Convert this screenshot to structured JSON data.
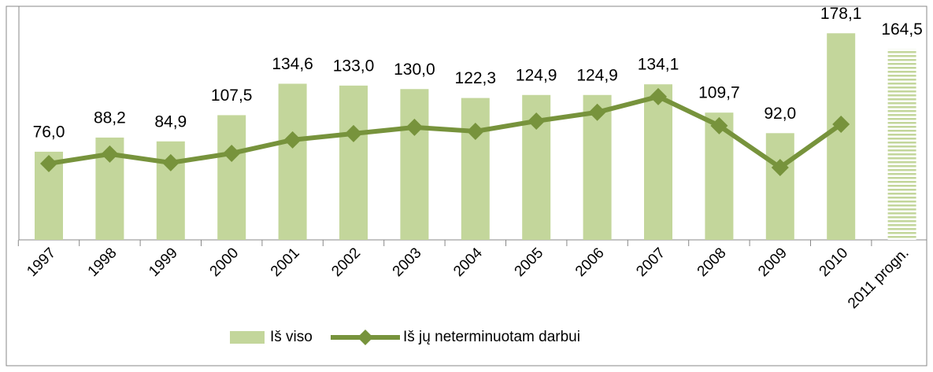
{
  "chart_data": {
    "type": "bar",
    "categories": [
      "1997",
      "1998",
      "1999",
      "2000",
      "2001",
      "2002",
      "2003",
      "2004",
      "2005",
      "2006",
      "2007",
      "2008",
      "2009",
      "2010",
      "2011 progn."
    ],
    "series": [
      {
        "name": "Iš viso",
        "type": "bar",
        "color": "#c3d69b",
        "values": [
          76.0,
          88.2,
          84.9,
          107.5,
          134.6,
          133.0,
          130.0,
          122.3,
          124.9,
          124.9,
          134.1,
          109.7,
          92.0,
          178.1,
          164.5
        ],
        "value_labels": [
          "76,0",
          "88,2",
          "84,9",
          "107,5",
          "134,6",
          "133,0",
          "130,0",
          "122,3",
          "124,9",
          "124,9",
          "134,1",
          "109,7",
          "92,0",
          "178,1",
          "164,5"
        ],
        "fills": [
          "solid",
          "solid",
          "solid",
          "solid",
          "solid",
          "solid",
          "solid",
          "solid",
          "solid",
          "solid",
          "solid",
          "solid",
          "solid",
          "solid",
          "striped"
        ]
      },
      {
        "name": "Iš jų neterminuotam darbui",
        "type": "line",
        "color": "#77933c",
        "values": [
          65.8,
          74.0,
          66.5,
          74.6,
          86.2,
          91.6,
          97.0,
          93.6,
          102.4,
          110.0,
          123.5,
          98.4,
          62.4,
          99.7,
          null
        ]
      }
    ],
    "ylim": [
      0,
      200
    ]
  }
}
